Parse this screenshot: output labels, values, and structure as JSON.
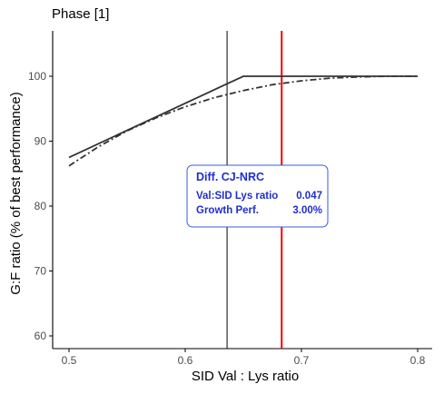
{
  "colors": {
    "series_line": "#333333",
    "vline_black": "#000000",
    "vline_red": "#ff0000",
    "annotation_text": "#1f2fcc",
    "annotation_border": "#3b5bdb",
    "axis": "#000000",
    "tick_text": "#4d4d4d"
  },
  "chart_data": {
    "type": "line",
    "title": "Phase [1]",
    "xlabel": "SID Val : Lys ratio",
    "ylabel": "G:F ratio (% of best performance)",
    "xlim": [
      0.5,
      0.8
    ],
    "ylim": [
      60,
      100
    ],
    "x_ticks": [
      0.5,
      0.6,
      0.7,
      0.8
    ],
    "x_tick_labels": [
      "0.5",
      "0.6",
      "0.7",
      "0.8"
    ],
    "y_ticks": [
      60,
      70,
      80,
      90,
      100
    ],
    "y_tick_labels": [
      "60",
      "70",
      "80",
      "90",
      "100"
    ],
    "grid": false,
    "series": [
      {
        "style": "solid",
        "x": [
          0.5,
          0.65,
          0.8
        ],
        "y": [
          87.5,
          100,
          100
        ]
      },
      {
        "style": "dashdot",
        "x": [
          0.5,
          0.525,
          0.55,
          0.575,
          0.6,
          0.625,
          0.65,
          0.675,
          0.7,
          0.725,
          0.75,
          0.775,
          0.8
        ],
        "y": [
          86.2,
          89.1,
          91.6,
          93.6,
          95.3,
          96.7,
          97.8,
          98.7,
          99.3,
          99.7,
          99.9,
          100,
          100
        ]
      }
    ],
    "vlines": [
      {
        "x": 0.636,
        "color": "#000000"
      },
      {
        "x": 0.683,
        "color": "#ff0000"
      }
    ],
    "annotation": {
      "title": "Diff. CJ-NRC",
      "rows": [
        {
          "label": "Val:SID Lys ratio",
          "value": "0.047"
        },
        {
          "label": "Growth Perf.",
          "value": "3.00%"
        }
      ],
      "anchor_x": 0.615,
      "anchor_y": 83
    }
  }
}
